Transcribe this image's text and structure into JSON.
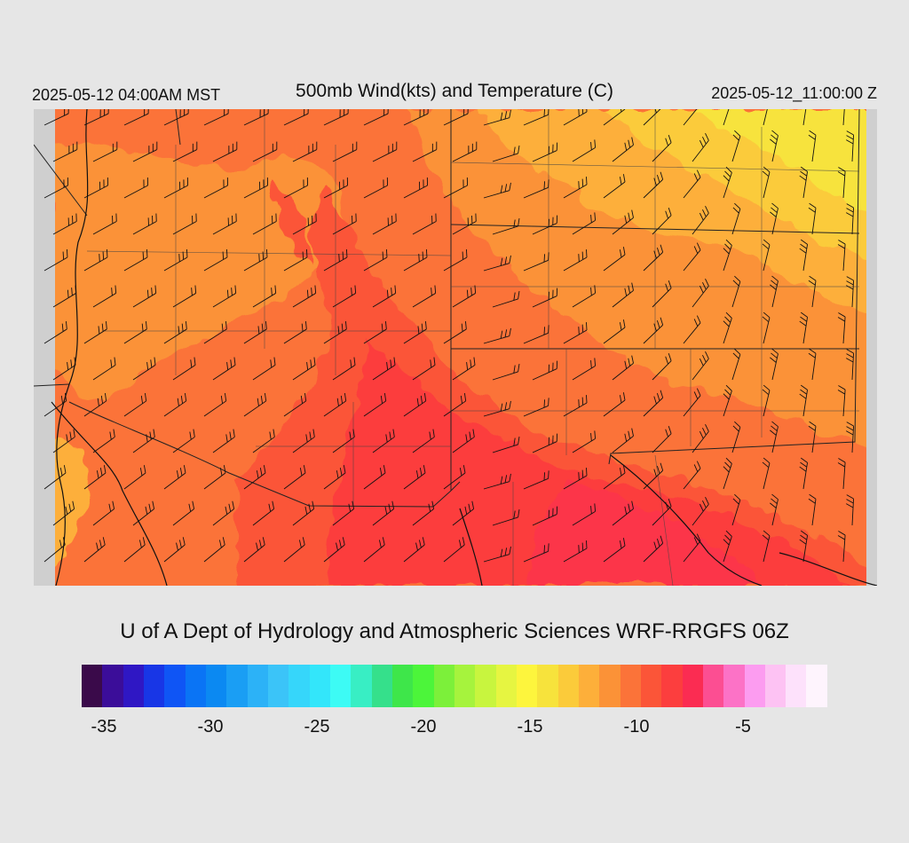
{
  "header": {
    "local_time": "2025-05-12 04:00AM MST",
    "title": "500mb Wind(kts) and Temperature (C)",
    "valid_time": "2025-05-12_11:00:00 Z"
  },
  "footer": {
    "credit": "U of A Dept of Hydrology and Atmospheric Sciences WRF-RRGFS 06Z"
  },
  "colorbar": {
    "colors": [
      "#3a0a4a",
      "#3b0d99",
      "#2f17c4",
      "#1836e6",
      "#0f55f5",
      "#0a74f5",
      "#0b89f2",
      "#1a9ef4",
      "#2cb2f7",
      "#3bc4f8",
      "#36d6fa",
      "#33e6fa",
      "#3dfbf5",
      "#38eec4",
      "#35e08b",
      "#3ee64a",
      "#4cf53a",
      "#7cf03a",
      "#a6f33d",
      "#c8f53e",
      "#e6f541",
      "#fdf53d",
      "#f7e33c",
      "#fbcb3a",
      "#fdaf3a",
      "#fb9237",
      "#fb7339",
      "#fb5538",
      "#fc3e3e",
      "#fb2c52",
      "#fc4e92",
      "#fc72c6",
      "#fc9cf0",
      "#fdc2f3",
      "#fde1fb",
      "#fef4fd"
    ],
    "ticks": [
      {
        "label": "-35",
        "value": -35
      },
      {
        "label": "-30",
        "value": -30
      },
      {
        "label": "-25",
        "value": -25
      },
      {
        "label": "-20",
        "value": -20
      },
      {
        "label": "-15",
        "value": -15
      },
      {
        "label": "-10",
        "value": -10
      },
      {
        "label": "-5",
        "value": -5
      }
    ]
  }
}
